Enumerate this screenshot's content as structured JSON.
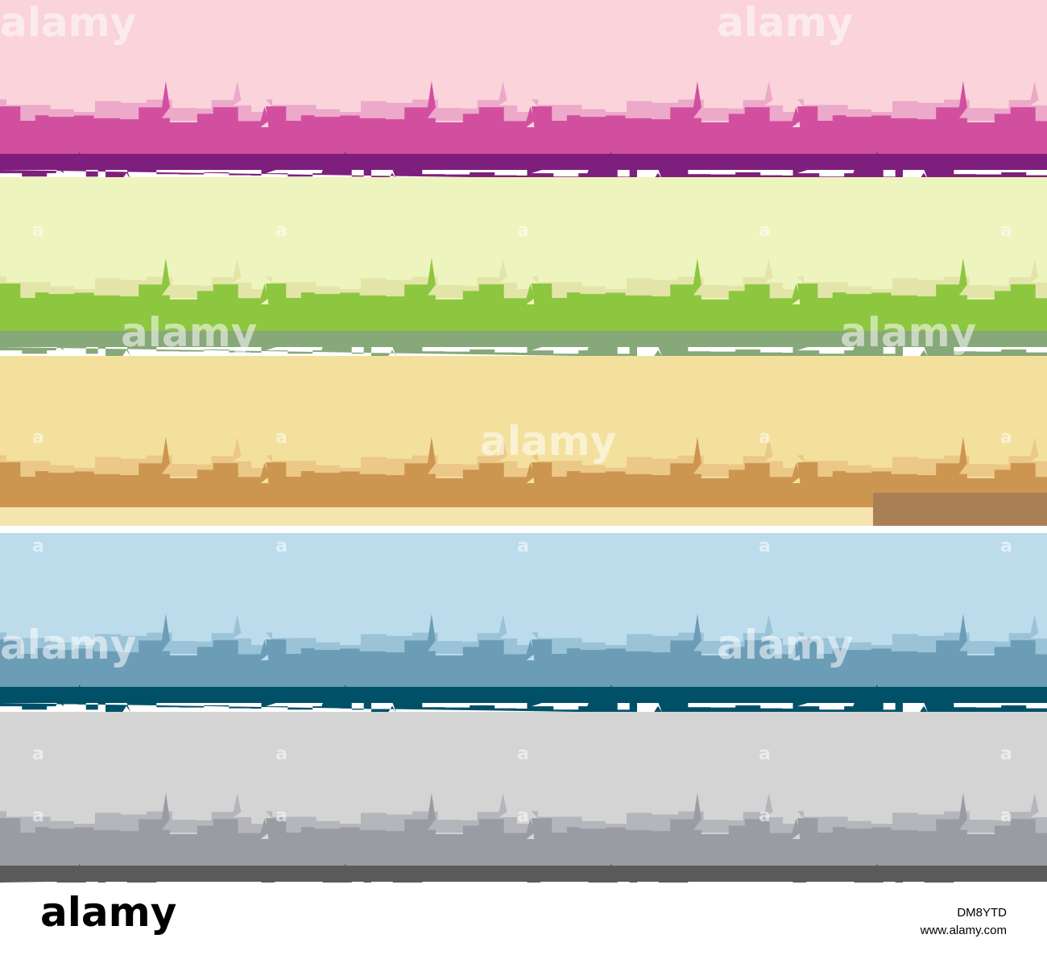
{
  "watermark": "alamy",
  "watermark_mark": "a",
  "footer": {
    "logo": "alamy",
    "image_id": "DM8YTD",
    "url": "www.alamy.com"
  }
}
